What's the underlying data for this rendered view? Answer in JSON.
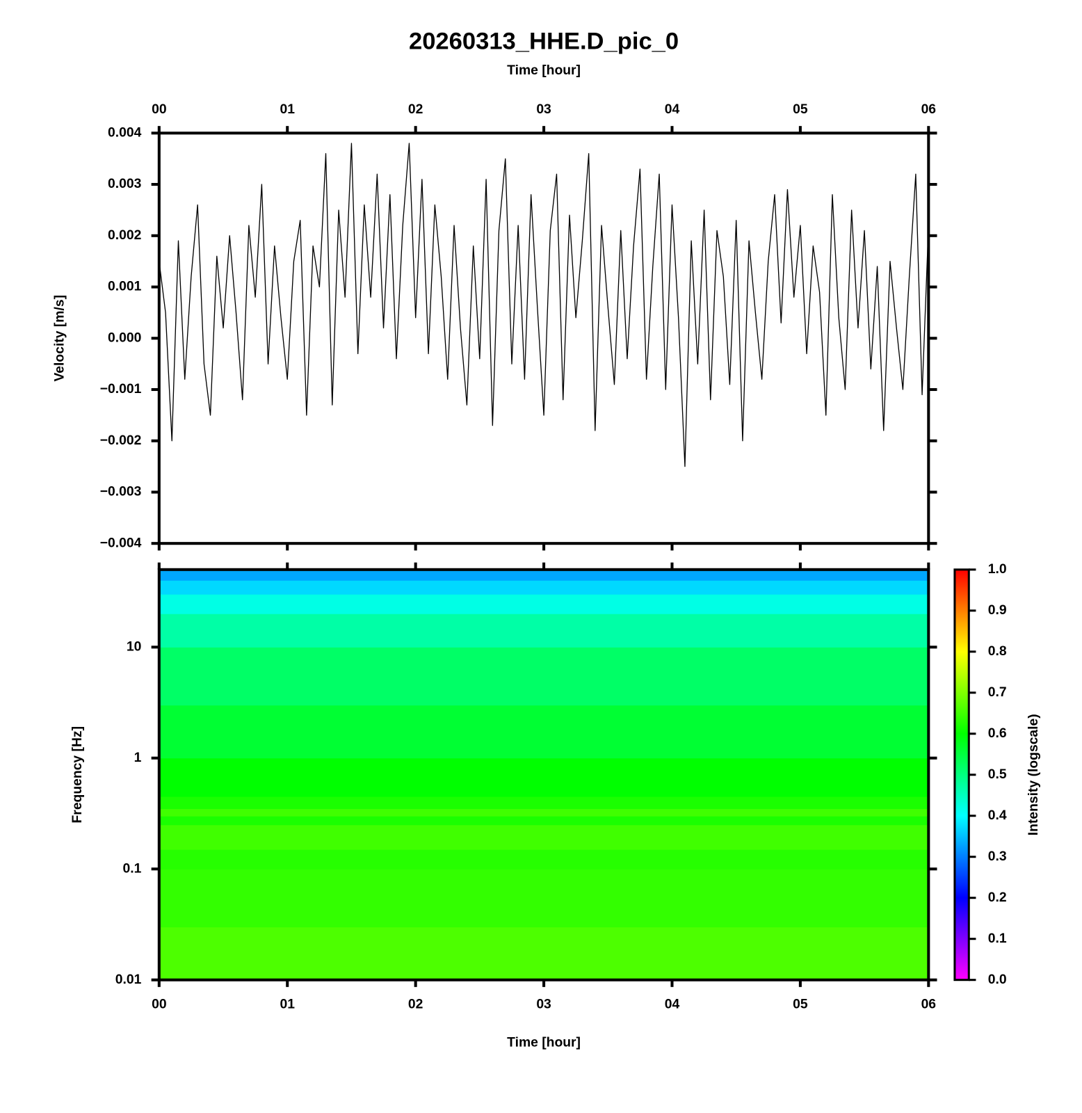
{
  "chart_data": [
    {
      "type": "line",
      "title": "20260313_HHE.D_pic_0",
      "xlabel": "Time [hour]",
      "ylabel": "Velocity [m/s]",
      "xlim": [
        0,
        6
      ],
      "xticks": [
        {
          "value": 0,
          "label": "00"
        },
        {
          "value": 1,
          "label": "01"
        },
        {
          "value": 2,
          "label": "02"
        },
        {
          "value": 3,
          "label": "03"
        },
        {
          "value": 4,
          "label": "04"
        },
        {
          "value": 5,
          "label": "05"
        },
        {
          "value": 6,
          "label": "06"
        }
      ],
      "ylim": [
        -0.004,
        0.004
      ],
      "yticks": [
        {
          "value": 0.004,
          "label": "0.004"
        },
        {
          "value": 0.003,
          "label": "0.003"
        },
        {
          "value": 0.002,
          "label": "0.002"
        },
        {
          "value": 0.001,
          "label": "0.001"
        },
        {
          "value": 0,
          "label": "0.000"
        },
        {
          "value": -0.001,
          "label": "−0.001"
        },
        {
          "value": -0.002,
          "label": "−0.002"
        },
        {
          "value": -0.003,
          "label": "−0.003"
        },
        {
          "value": -0.004,
          "label": "−0.004"
        }
      ],
      "color": "#000000",
      "x": [
        0,
        0.05,
        0.1,
        0.15,
        0.2,
        0.25,
        0.3,
        0.35,
        0.4,
        0.45,
        0.5,
        0.55,
        0.6,
        0.65,
        0.7,
        0.75,
        0.8,
        0.85,
        0.9,
        0.95,
        1,
        1.05,
        1.1,
        1.15,
        1.2,
        1.25,
        1.3,
        1.35,
        1.4,
        1.45,
        1.5,
        1.55,
        1.6,
        1.65,
        1.7,
        1.75,
        1.8,
        1.85,
        1.9,
        1.95,
        2,
        2.05,
        2.1,
        2.15,
        2.2,
        2.25,
        2.3,
        2.35,
        2.4,
        2.45,
        2.5,
        2.55,
        2.6,
        2.65,
        2.7,
        2.75,
        2.8,
        2.85,
        2.9,
        2.95,
        3,
        3.05,
        3.1,
        3.15,
        3.2,
        3.25,
        3.3,
        3.35,
        3.4,
        3.45,
        3.5,
        3.55,
        3.6,
        3.65,
        3.7,
        3.75,
        3.8,
        3.85,
        3.9,
        3.95,
        4,
        4.05,
        4.1,
        4.15,
        4.2,
        4.25,
        4.3,
        4.35,
        4.4,
        4.45,
        4.5,
        4.55,
        4.6,
        4.65,
        4.7,
        4.75,
        4.8,
        4.85,
        4.9,
        4.95,
        5,
        5.05,
        5.1,
        5.15,
        5.2,
        5.25,
        5.3,
        5.35,
        5.4,
        5.45,
        5.5,
        5.55,
        5.6,
        5.65,
        5.7,
        5.75,
        5.8,
        5.85,
        5.9,
        5.95,
        6
      ],
      "values": [
        0.0015,
        0.0005,
        -0.002,
        0.0019,
        -0.0008,
        0.0012,
        0.0026,
        -0.0005,
        -0.0015,
        0.0016,
        0.0002,
        0.002,
        0.0005,
        -0.0012,
        0.0022,
        0.0008,
        0.003,
        -0.0005,
        0.0018,
        0.0004,
        -0.0008,
        0.0015,
        0.0023,
        -0.0015,
        0.0018,
        0.001,
        0.0036,
        -0.0013,
        0.0025,
        0.0008,
        0.0038,
        -0.0003,
        0.0026,
        0.0008,
        0.0032,
        0.0002,
        0.0028,
        -0.0004,
        0.0022,
        0.0038,
        0.0004,
        0.0031,
        -0.0003,
        0.0026,
        0.0012,
        -0.0008,
        0.0022,
        0.0002,
        -0.0013,
        0.0018,
        -0.0004,
        0.0031,
        -0.0017,
        0.0021,
        0.0035,
        -0.0005,
        0.0022,
        -0.0008,
        0.0028,
        0.0006,
        -0.0015,
        0.0021,
        0.0032,
        -0.0012,
        0.0024,
        0.0004,
        0.0019,
        0.0036,
        -0.0018,
        0.0022,
        0.0006,
        -0.0009,
        0.0021,
        -0.0004,
        0.0018,
        0.0033,
        -0.0008,
        0.0014,
        0.0032,
        -0.001,
        0.0026,
        0.0004,
        -0.0025,
        0.0019,
        -0.0005,
        0.0025,
        -0.0012,
        0.0021,
        0.0012,
        -0.0009,
        0.0023,
        -0.002,
        0.0019,
        0.0005,
        -0.0008,
        0.0015,
        0.0028,
        0.0003,
        0.0029,
        0.0008,
        0.0022,
        -0.0003,
        0.0018,
        0.0009,
        -0.0015,
        0.0028,
        0.0004,
        -0.001,
        0.0025,
        0.0002,
        0.0021,
        -0.0006,
        0.0014,
        -0.0018,
        0.0015,
        0.0002,
        -0.001,
        0.0012,
        0.0032,
        -0.0011,
        0.0022
      ]
    },
    {
      "type": "heatmap",
      "xlabel": "Time [hour]",
      "ylabel": "Frequency [Hz]",
      "colorbar_label": "Intensity (logscale)",
      "log_y": true,
      "xlim": [
        0,
        6
      ],
      "xticks": [
        {
          "value": 0,
          "label": "00"
        },
        {
          "value": 1,
          "label": "01"
        },
        {
          "value": 2,
          "label": "02"
        },
        {
          "value": 3,
          "label": "03"
        },
        {
          "value": 4,
          "label": "04"
        },
        {
          "value": 5,
          "label": "05"
        },
        {
          "value": 6,
          "label": "06"
        }
      ],
      "ylim": [
        0.01,
        50
      ],
      "yticks": [
        0.01,
        0.1,
        1,
        10
      ],
      "frequency_edges": [
        0.01,
        0.03,
        0.1,
        0.15,
        0.25,
        0.3,
        0.35,
        0.45,
        1,
        3,
        10,
        20,
        30,
        40,
        50
      ],
      "intensity": [
        0.66,
        0.64,
        0.63,
        0.65,
        0.62,
        0.65,
        0.62,
        0.6,
        0.56,
        0.52,
        0.47,
        0.42,
        0.37,
        0.33
      ],
      "clim": [
        0,
        1
      ],
      "cticks": [
        {
          "value": 0,
          "label": "0.0"
        },
        0.1,
        0.2,
        0.3,
        0.4,
        0.5,
        0.6,
        0.7,
        0.8,
        0.9,
        {
          "value": 1,
          "label": "1.0"
        }
      ],
      "colormap": [
        "#ff00ff",
        "#0000ff",
        "#00ffff",
        "#00ff00",
        "#ffff00",
        "#ff0000"
      ]
    }
  ]
}
